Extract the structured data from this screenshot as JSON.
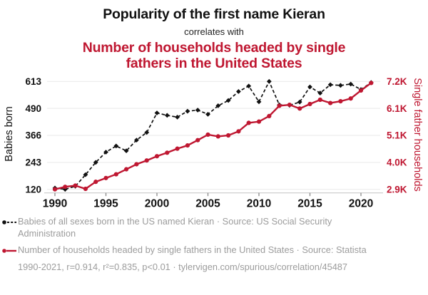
{
  "header": {
    "title_top": "Popularity of the first name Kieran",
    "connector": "correlates with",
    "title_bottom": "Number of households headed by single fathers in the United States"
  },
  "colors": {
    "accent_red": "#bf1731",
    "series_black": "#111111",
    "footer_gray": "#9c9c9c",
    "grid_gray": "#e9e9e9",
    "axis_gray": "#c9c9c9"
  },
  "chart_data": {
    "type": "line",
    "x": [
      1990,
      1991,
      1992,
      1993,
      1994,
      1995,
      1996,
      1997,
      1998,
      1999,
      2000,
      2001,
      2002,
      2003,
      2004,
      2005,
      2006,
      2007,
      2008,
      2009,
      2010,
      2011,
      2012,
      2013,
      2014,
      2015,
      2016,
      2017,
      2018,
      2019,
      2020,
      2021
    ],
    "series": [
      {
        "name": "Babies of all sexes born in the US named Kieran",
        "axis": "left",
        "color": "#111111",
        "line_style": "dashed",
        "marker": "diamond",
        "values": [
          126,
          120,
          134,
          187,
          243,
          290,
          318,
          296,
          345,
          380,
          469,
          458,
          450,
          477,
          482,
          463,
          502,
          526,
          567,
          592,
          520,
          613,
          506,
          504,
          519,
          588,
          560,
          598,
          595,
          601,
          576,
          608
        ]
      },
      {
        "name": "Number of households headed by single fathers in the United States",
        "axis": "right",
        "color": "#bf1731",
        "line_style": "solid",
        "marker": "circle",
        "values": [
          2900,
          3000,
          3050,
          2920,
          3200,
          3350,
          3500,
          3700,
          3900,
          4050,
          4220,
          4360,
          4520,
          4650,
          4860,
          5080,
          5010,
          5050,
          5210,
          5550,
          5600,
          5820,
          6230,
          6270,
          6120,
          6300,
          6470,
          6340,
          6410,
          6520,
          6840,
          7140
        ]
      }
    ],
    "left_axis": {
      "label": "Babies born",
      "ticks": [
        613,
        490,
        366,
        243,
        120
      ],
      "min": 120,
      "max": 613
    },
    "right_axis": {
      "label": "Single father households",
      "ticks": [
        "7.2K",
        "6.1K",
        "5.1K",
        "4.0K",
        "2.9K"
      ],
      "min": 2900,
      "max": 7200
    },
    "x_axis": {
      "ticks": [
        1990,
        1995,
        2000,
        2005,
        2010,
        2015,
        2020
      ],
      "min": 1990,
      "max": 2021
    },
    "grid": true,
    "legend_position": "bottom"
  },
  "footer": {
    "legend": [
      {
        "label": "Babies of all sexes born in the US named Kieran · Source: US Social Security Administration"
      },
      {
        "label": "Number of households headed by single fathers in the United States · Source: Statista"
      }
    ],
    "stats_line": "1990-2021, r=0.914, r²=0.835, p<0.01 · tylervigen.com/spurious/correlation/45487"
  }
}
